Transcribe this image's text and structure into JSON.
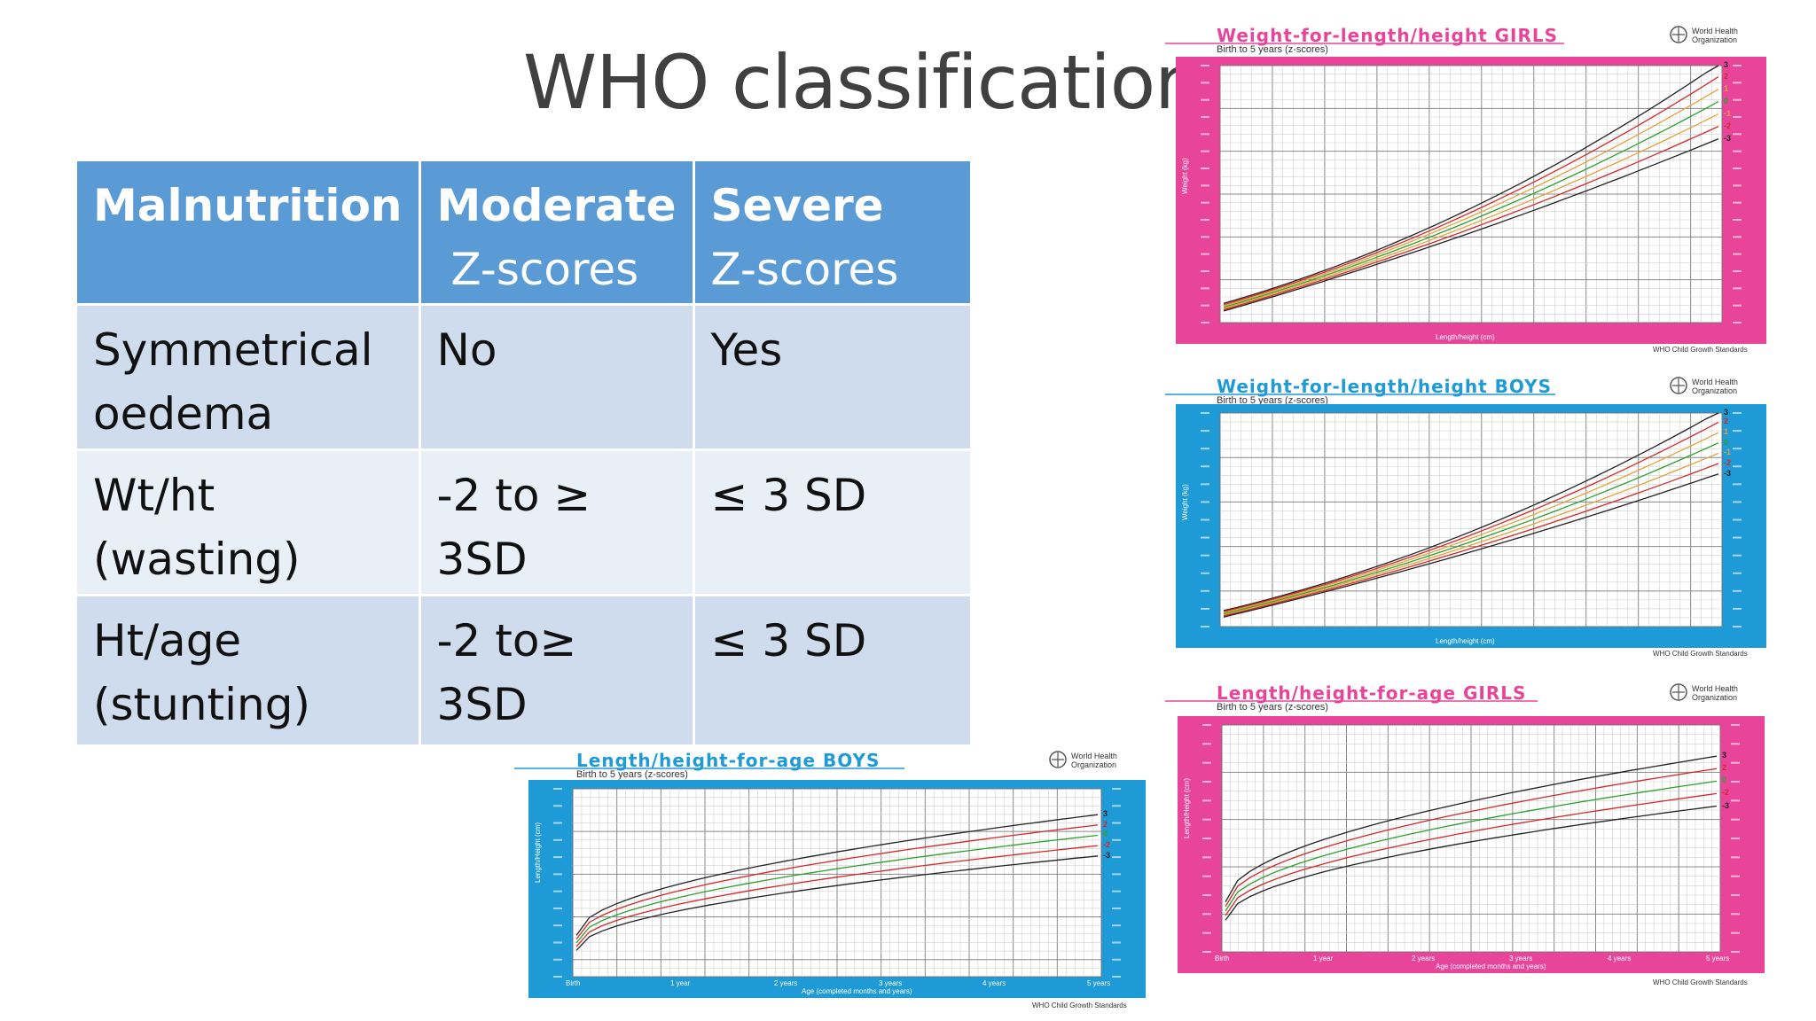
{
  "slide": {
    "title": "WHO classification"
  },
  "table": {
    "headers": [
      {
        "line1": "Malnutrition",
        "line2": ""
      },
      {
        "line1": "Moderate",
        "line2": " Z-scores"
      },
      {
        "line1": "Severe",
        "line2": "Z-scores"
      }
    ],
    "rows": [
      {
        "label": [
          "Symmetrical",
          "oedema"
        ],
        "moderate": "No",
        "severe": "Yes"
      },
      {
        "label": [
          "Wt/ht",
          "(wasting)"
        ],
        "moderate": "-2 to ≥ 3SD",
        "severe": "≤ 3 SD"
      },
      {
        "label": [
          "Ht/age",
          "(stunting)"
        ],
        "moderate": "-2 to≥ 3SD",
        "severe": "≤ 3 SD"
      }
    ]
  },
  "charts": {
    "girls_wfl": {
      "title": "Weight-for-length/height  GIRLS",
      "subtitle": "Birth to 5 years (z-scores)",
      "org": "World Health Organization",
      "standards": "WHO Child Growth Standards",
      "xlabel": "Length/height (cm)",
      "ylabel": "Weight (kg)",
      "frame_color": "#e8459a",
      "title_color": "#e8459a",
      "curve_labels": [
        "3",
        "2",
        "1",
        "0",
        "-1",
        "-2",
        "-3"
      ]
    },
    "boys_wfl": {
      "title": "Weight-for-length/height  BOYS",
      "subtitle": "Birth to 5 years (z-scores)",
      "org": "World Health Organization",
      "standards": "WHO Child Growth Standards",
      "xlabel": "Length/height (cm)",
      "ylabel": "Weight (kg)",
      "frame_color": "#1e9ad6",
      "title_color": "#1e9ad6",
      "curve_labels": [
        "3",
        "2",
        "1",
        "0",
        "-1",
        "-2",
        "-3"
      ]
    },
    "girls_lfa": {
      "title": "Length/height-for-age GIRLS",
      "subtitle": "Birth to 5 years (z-scores)",
      "org": "World Health Organization",
      "standards": "WHO Child Growth Standards",
      "xlabel": "Age (completed months and years)",
      "ylabel": "Length/Height (cm)",
      "frame_color": "#e8459a",
      "title_color": "#e8459a",
      "curve_labels": [
        "3",
        "2",
        "0",
        "-2",
        "-3"
      ],
      "age_ticks": [
        "Birth",
        "1 year",
        "2 years",
        "3 years",
        "4 years",
        "5 years"
      ]
    },
    "boys_lfa": {
      "title": "Length/height-for-age BOYS",
      "subtitle": "Birth to 5 years (z-scores)",
      "org": "World Health Organization",
      "standards": "WHO Child Growth Standards",
      "xlabel": "Age (completed months and years)",
      "ylabel": "Length/Height (cm)",
      "frame_color": "#1e9ad6",
      "title_color": "#1e9ad6",
      "curve_labels": [
        "3",
        "2",
        "0",
        "-2",
        "-3"
      ],
      "age_ticks": [
        "Birth",
        "1 year",
        "2 years",
        "3 years",
        "4 years",
        "5 years"
      ]
    }
  }
}
